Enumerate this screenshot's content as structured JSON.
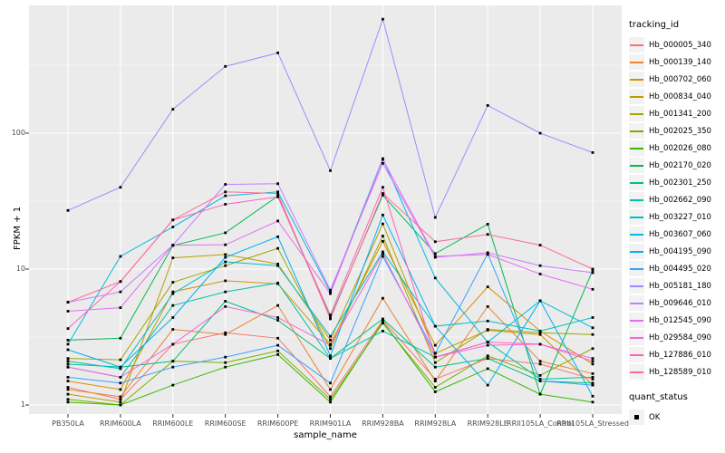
{
  "figure": {
    "panel_bg": "#EBEBEB",
    "grid_color": "#FFFFFF",
    "tick_color": "#333333",
    "tick_label_color": "#4D4D4D",
    "point_color": "#000000",
    "legend_key_bg": "#F2F2F2"
  },
  "chart_data": {
    "type": "line",
    "xlabel": "sample_name",
    "ylabel": "FPKM + 1",
    "y_scale": "log10",
    "y_ticks": [
      "1",
      "10",
      "100"
    ],
    "y_tick_values": [
      1,
      10,
      100
    ],
    "y_minor_values": [
      3.162,
      31.62,
      316.2
    ],
    "ylim": [
      0.93,
      870
    ],
    "grid": true,
    "legend_position": "right",
    "categories": [
      "PB350LA",
      "RRIM600LA",
      "RRIM600LE",
      "RRIM600SE",
      "RRIM600PE",
      "RRIM901LA",
      "RRIM928BA",
      "RRIM928LA",
      "RRIM928LE",
      "RRII105LA_Control",
      "RRII105LA_Stressed"
    ],
    "legend": {
      "title": "tracking_id"
    },
    "quant_legend": {
      "title": "quant_status",
      "item": "OK"
    },
    "point_shape": "filled-square",
    "series": [
      {
        "name": "Hb_000005_340",
        "color": "#F8766D",
        "values": [
          1.35,
          1.1,
          2.8,
          3.4,
          3.1,
          1.15,
          4.2,
          1.55,
          2.2,
          2.0,
          1.55
        ]
      },
      {
        "name": "Hb_000139_140",
        "color": "#EA8331",
        "values": [
          1.3,
          1.15,
          3.6,
          3.3,
          5.4,
          1.3,
          6.1,
          1.5,
          5.3,
          2.1,
          1.7
        ]
      },
      {
        "name": "Hb_000702_060",
        "color": "#D89000",
        "values": [
          1.5,
          1.3,
          6.8,
          8.2,
          7.8,
          2.8,
          16,
          2.75,
          7.4,
          3.5,
          2.0
        ]
      },
      {
        "name": "Hb_000834_040",
        "color": "#C09B00",
        "values": [
          1.2,
          1.05,
          12.1,
          12.8,
          10.9,
          3.0,
          21.5,
          2.4,
          3.55,
          3.3,
          1.4
        ]
      },
      {
        "name": "Hb_001341_200",
        "color": "#A3A500",
        "values": [
          2.2,
          2.15,
          8.0,
          10.6,
          14.2,
          2.6,
          17.5,
          2.05,
          3.6,
          3.4,
          3.3
        ]
      },
      {
        "name": "Hb_002025_350",
        "color": "#7CAE00",
        "values": [
          1.1,
          1.0,
          2.1,
          2.05,
          2.5,
          1.1,
          4.0,
          1.35,
          2.3,
          1.65,
          2.6
        ]
      },
      {
        "name": "Hb_002026_080",
        "color": "#39B600",
        "values": [
          1.05,
          1.0,
          1.4,
          1.9,
          2.35,
          1.05,
          4.1,
          1.25,
          1.85,
          1.2,
          1.05
        ]
      },
      {
        "name": "Hb_002170_020",
        "color": "#00BB4E",
        "values": [
          3.0,
          3.1,
          14.9,
          18.5,
          34.5,
          4.4,
          35,
          13,
          21.4,
          1.2,
          9.8
        ]
      },
      {
        "name": "Hb_002301_250",
        "color": "#00BF7D",
        "values": [
          2.0,
          1.9,
          2.1,
          5.8,
          4.2,
          2.2,
          4.3,
          1.9,
          2.2,
          1.5,
          1.45
        ]
      },
      {
        "name": "Hb_002662_090",
        "color": "#00C1A3",
        "values": [
          1.9,
          1.6,
          5.4,
          6.8,
          7.9,
          2.2,
          3.5,
          2.25,
          2.9,
          1.55,
          1.6
        ]
      },
      {
        "name": "Hb_003227_010",
        "color": "#00BFC4",
        "values": [
          2.1,
          1.85,
          6.6,
          11.3,
          10.6,
          3.2,
          13.4,
          3.8,
          4.15,
          3.5,
          4.4
        ]
      },
      {
        "name": "Hb_003607_060",
        "color": "#00BAE0",
        "values": [
          2.8,
          12.4,
          20.4,
          34.6,
          37,
          6.8,
          65,
          8.6,
          2.9,
          5.85,
          3.7
        ]
      },
      {
        "name": "Hb_004195_090",
        "color": "#00B0F6",
        "values": [
          2.55,
          1.9,
          4.4,
          12.2,
          17.3,
          2.3,
          25,
          3.8,
          1.4,
          5.85,
          1.16
        ]
      },
      {
        "name": "Hb_004495_020",
        "color": "#35A2FF",
        "values": [
          1.6,
          1.45,
          1.9,
          2.25,
          2.75,
          1.45,
          12.4,
          2.4,
          13,
          1.5,
          1.4
        ]
      },
      {
        "name": "Hb_005181_180",
        "color": "#9590FF",
        "values": [
          27,
          40,
          150,
          310,
          390,
          53,
          690,
          24,
          160,
          100,
          72
        ]
      },
      {
        "name": "Hb_009646_010",
        "color": "#C77CFF",
        "values": [
          5.7,
          6.8,
          15,
          42,
          42.5,
          7.0,
          60,
          12.2,
          13.2,
          10.6,
          9.4
        ]
      },
      {
        "name": "Hb_012545_090",
        "color": "#E76BF3",
        "values": [
          4.9,
          5.2,
          15,
          15.1,
          22.6,
          6.6,
          64,
          12.4,
          12.8,
          9.2,
          7.1
        ]
      },
      {
        "name": "Hb_029584_090",
        "color": "#FA62DB",
        "values": [
          1.9,
          1.6,
          2.8,
          5.3,
          4.4,
          2.75,
          13,
          2.25,
          2.75,
          2.8,
          2.2
        ]
      },
      {
        "name": "Hb_127886_010",
        "color": "#FF62BC",
        "values": [
          3.65,
          8.1,
          23,
          30,
          34,
          4.6,
          40,
          2.25,
          2.9,
          2.8,
          2.1
        ]
      },
      {
        "name": "Hb_128589_010",
        "color": "#FF6A98",
        "values": [
          5.7,
          8.1,
          23,
          37,
          36,
          4.3,
          36,
          15.9,
          18,
          15,
          10
        ]
      }
    ]
  }
}
